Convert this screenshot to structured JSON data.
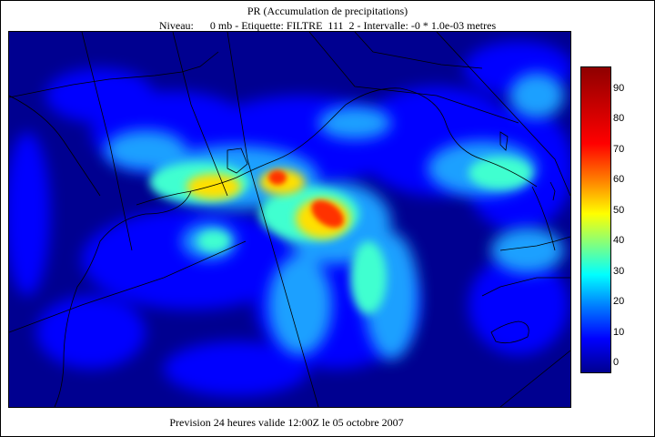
{
  "title": "PR (Accumulation de precipitations)",
  "subtitle": "Niveau:      0 mb - Etiquette: FILTRE  111  2 - Intervalle: -0 * 1.0e-03 metres",
  "footer": "Prevision 24 heures valide 12:00Z le 05 octobre 2007",
  "colorbar": {
    "labels": [
      "90",
      "80",
      "70",
      "60",
      "50",
      "40",
      "30",
      "20",
      "10",
      "0"
    ],
    "colors": [
      "#00008f",
      "#0000ff",
      "#0080ff",
      "#00ffff",
      "#80ff80",
      "#ffff00",
      "#ff8000",
      "#ff0000",
      "#8f0000"
    ]
  },
  "map": {
    "field": "precipitation accumulation",
    "background_color": "#000090",
    "coastline_color": "#000000"
  }
}
